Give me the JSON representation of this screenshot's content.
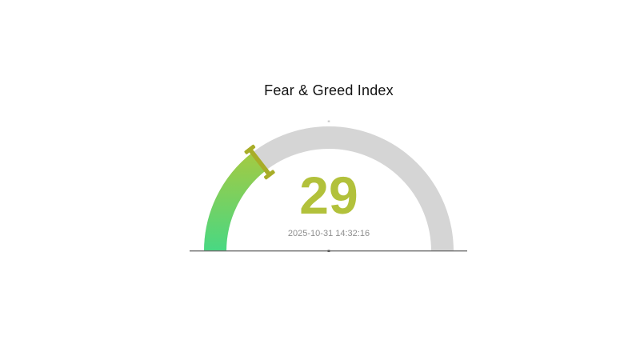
{
  "page": {
    "background": "#ffffff"
  },
  "chart_data": {
    "type": "gauge",
    "title": "Fear & Greed Index",
    "value": 29,
    "min": 0,
    "max": 100,
    "timestamp": "2025-10-31 14:32:16",
    "start_angle_deg": 180,
    "end_angle_deg": 0,
    "legend": false,
    "grid": false,
    "axis_labels": false,
    "colors": {
      "track": "#d5d5d5",
      "progress_gradient_start": "#48d883",
      "progress_gradient_end": "#a9c93e",
      "pointer": "#a8ad28",
      "value_text": "#b2c13b",
      "timestamp_text": "#8f8f8f",
      "title_text": "#141414",
      "baseline": "#6b6b6b"
    }
  }
}
